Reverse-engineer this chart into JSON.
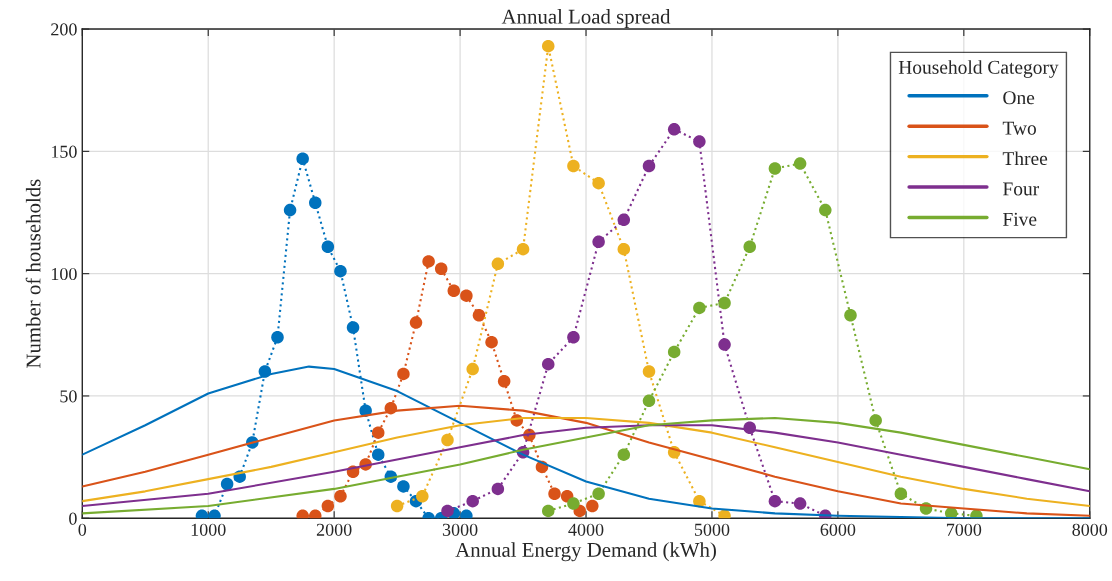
{
  "chart_data": {
    "type": "line",
    "title": "Annual Load spread",
    "xlabel": "Annual Energy Demand (kWh)",
    "ylabel": "Number of households",
    "legend_title": "Household Category",
    "legend": "top right",
    "grid": true,
    "xlim": [
      0,
      8000
    ],
    "xticks": [
      0,
      1000,
      2000,
      3000,
      4000,
      5000,
      6000,
      7000,
      8000
    ],
    "ylim": [
      0,
      200
    ],
    "yticks": [
      0,
      50,
      100,
      150,
      200
    ],
    "series": [
      {
        "line_style": "dotted",
        "marker": "circle",
        "color": "#0072bd",
        "x": [
          950,
          1050,
          1150,
          1250,
          1350,
          1450,
          1550,
          1650,
          1750,
          1850,
          1950,
          2050,
          2150,
          2250,
          2350,
          2450,
          2550,
          2650,
          2750,
          2850,
          2950,
          3050
        ],
        "values": [
          1,
          1,
          14,
          17,
          31,
          60,
          74,
          126,
          147,
          129,
          111,
          101,
          78,
          44,
          26,
          17,
          13,
          7,
          0,
          0,
          2,
          1
        ]
      },
      {
        "line_style": "dotted",
        "marker": "circle",
        "color": "#d95319",
        "x": [
          1750,
          1850,
          1950,
          2050,
          2150,
          2250,
          2350,
          2450,
          2550,
          2650,
          2750,
          2850,
          2950,
          3050,
          3150,
          3250,
          3350,
          3450,
          3550,
          3650,
          3750,
          3850,
          3950,
          4050
        ],
        "values": [
          1,
          1,
          5,
          9,
          19,
          22,
          35,
          45,
          59,
          80,
          105,
          102,
          93,
          91,
          83,
          72,
          56,
          40,
          34,
          21,
          10,
          9,
          3,
          5
        ]
      },
      {
        "line_style": "dotted",
        "marker": "circle",
        "color": "#edb120",
        "x": [
          2500,
          2700,
          2900,
          3100,
          3300,
          3500,
          3700,
          3900,
          4100,
          4300,
          4500,
          4700,
          4900,
          5100
        ],
        "values": [
          5,
          9,
          32,
          61,
          104,
          110,
          193,
          144,
          137,
          110,
          60,
          27,
          7,
          1
        ]
      },
      {
        "line_style": "dotted",
        "marker": "circle",
        "color": "#7e2f8e",
        "x": [
          2900,
          3100,
          3300,
          3500,
          3700,
          3900,
          4100,
          4300,
          4500,
          4700,
          4900,
          5100,
          5300,
          5500,
          5700,
          5900
        ],
        "values": [
          3,
          7,
          12,
          27,
          63,
          74,
          113,
          122,
          144,
          159,
          154,
          71,
          37,
          7,
          6,
          1
        ]
      },
      {
        "line_style": "dotted",
        "marker": "circle",
        "color": "#77ac30",
        "x": [
          3700,
          3900,
          4100,
          4300,
          4500,
          4700,
          4900,
          5100,
          5300,
          5500,
          5700,
          5900,
          6100,
          6300,
          6500,
          6700,
          6900,
          7100
        ],
        "values": [
          3,
          6,
          10,
          26,
          48,
          68,
          86,
          88,
          111,
          143,
          145,
          126,
          83,
          40,
          10,
          4,
          2,
          1
        ]
      },
      {
        "name": "One",
        "line_style": "solid",
        "marker": "none",
        "color": "#0072bd",
        "x": [
          0,
          500,
          1000,
          1500,
          1800,
          2000,
          2500,
          3000,
          3500,
          4000,
          4500,
          5000,
          5500,
          6000,
          7000,
          8000
        ],
        "values": [
          26,
          38,
          51,
          59,
          62,
          61,
          52,
          39,
          26,
          15,
          8,
          4,
          2,
          1,
          0,
          0
        ]
      },
      {
        "name": "Two",
        "line_style": "solid",
        "marker": "none",
        "color": "#d95319",
        "x": [
          0,
          500,
          1000,
          1500,
          2000,
          2500,
          3000,
          3500,
          4000,
          4500,
          5000,
          5500,
          6000,
          6500,
          7000,
          7500,
          8000
        ],
        "values": [
          13,
          19,
          26,
          33,
          40,
          44,
          46,
          44,
          39,
          31,
          24,
          17,
          11,
          6,
          4,
          2,
          1
        ]
      },
      {
        "name": "Three",
        "line_style": "solid",
        "marker": "none",
        "color": "#edb120",
        "x": [
          0,
          500,
          1000,
          1500,
          2000,
          2500,
          3000,
          3500,
          4000,
          4500,
          5000,
          5500,
          6000,
          6500,
          7000,
          7500,
          8000
        ],
        "values": [
          7,
          11,
          16,
          21,
          27,
          33,
          38,
          41,
          41,
          39,
          35,
          29,
          23,
          17,
          12,
          8,
          5
        ]
      },
      {
        "name": "Four",
        "line_style": "solid",
        "marker": "none",
        "color": "#7e2f8e",
        "x": [
          0,
          1000,
          2000,
          2500,
          3000,
          3500,
          4000,
          4500,
          5000,
          5500,
          6000,
          6500,
          7000,
          7500,
          8000
        ],
        "values": [
          5,
          10,
          19,
          24,
          29,
          34,
          37,
          38,
          38,
          35,
          31,
          26,
          21,
          16,
          11
        ]
      },
      {
        "name": "Five",
        "line_style": "solid",
        "marker": "none",
        "color": "#77ac30",
        "x": [
          0,
          1000,
          2000,
          2500,
          3000,
          3500,
          4000,
          4500,
          5000,
          5500,
          6000,
          6500,
          7000,
          7500,
          8000
        ],
        "values": [
          2,
          5,
          12,
          17,
          22,
          28,
          33,
          38,
          40,
          41,
          39,
          35,
          30,
          25,
          20
        ]
      }
    ]
  }
}
